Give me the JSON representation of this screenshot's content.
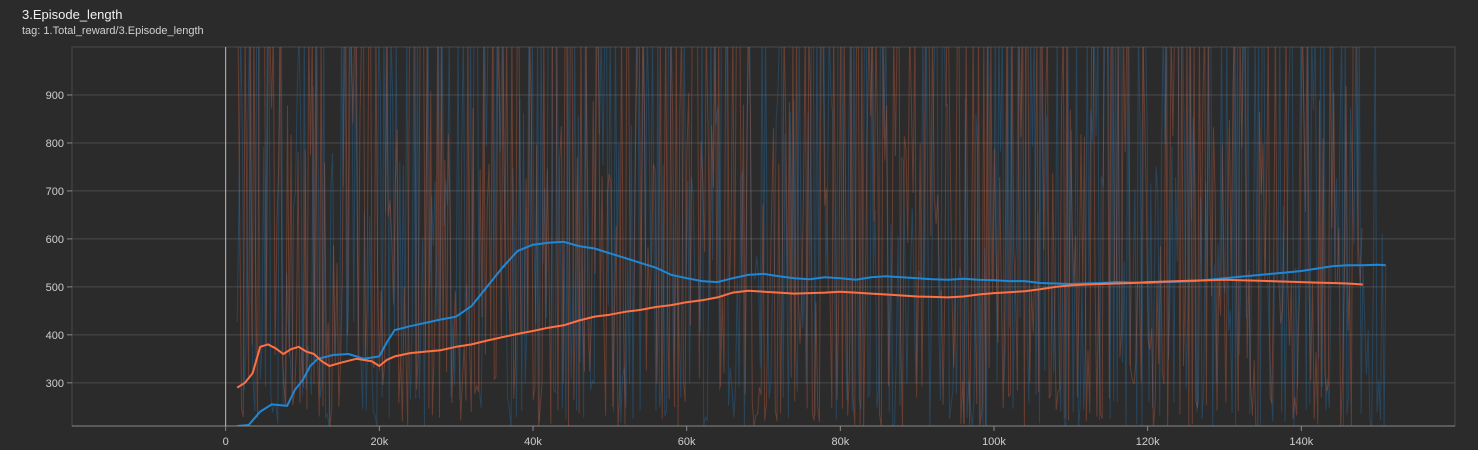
{
  "card": {
    "title": "3.Episode_length",
    "subtitle": "tag: 1.Total_reward/3.Episode_length"
  },
  "colors": {
    "background": "#2b2b2b",
    "grid": "#4a4a4a",
    "axis_text": "#cfcfcf",
    "series_blue": "#1f88d6",
    "series_orange": "#ff7043"
  },
  "chart_data": {
    "type": "line",
    "title": "3.Episode_length",
    "xlabel": "",
    "ylabel": "",
    "xlim": [
      -20000,
      160000
    ],
    "ylim": [
      210,
      1000
    ],
    "x_ticks": [
      0,
      20000,
      40000,
      60000,
      80000,
      100000,
      120000,
      140000
    ],
    "x_tick_labels": [
      "0",
      "20k",
      "40k",
      "60k",
      "80k",
      "100k",
      "120k",
      "140k"
    ],
    "y_ticks": [
      300,
      400,
      500,
      600,
      700,
      800,
      900
    ],
    "y_tick_labels": [
      "300",
      "400",
      "500",
      "600",
      "700",
      "800",
      "900"
    ],
    "grid": true,
    "legend": "none",
    "series": [
      {
        "color": "#1f88d6",
        "smoothed": true,
        "x": [
          1500,
          3000,
          4500,
          6000,
          8000,
          9000,
          10000,
          11000,
          12000,
          14000,
          16000,
          18000,
          20000,
          21000,
          22000,
          24000,
          26000,
          28000,
          30000,
          32000,
          34000,
          36000,
          38000,
          40000,
          42000,
          44000,
          46000,
          48000,
          50000,
          52000,
          54000,
          56000,
          58000,
          60000,
          62000,
          64000,
          66000,
          68000,
          70000,
          72000,
          74000,
          76000,
          78000,
          80000,
          82000,
          84000,
          86000,
          88000,
          90000,
          92000,
          94000,
          96000,
          98000,
          100000,
          102000,
          104000,
          106000,
          108000,
          110000,
          112000,
          114000,
          116000,
          118000,
          120000,
          122000,
          124000,
          126000,
          128000,
          130000,
          132000,
          134000,
          136000,
          138000,
          140000,
          142000,
          144000,
          146000,
          148000,
          150000,
          151000
        ],
        "values": [
          210,
          212,
          240,
          255,
          252,
          285,
          305,
          335,
          350,
          358,
          360,
          350,
          355,
          385,
          410,
          418,
          425,
          432,
          438,
          460,
          500,
          540,
          575,
          588,
          592,
          594,
          585,
          580,
          570,
          560,
          550,
          540,
          525,
          518,
          512,
          510,
          518,
          525,
          527,
          522,
          518,
          516,
          520,
          518,
          515,
          520,
          522,
          520,
          518,
          516,
          515,
          517,
          515,
          514,
          512,
          512,
          508,
          507,
          506,
          507,
          508,
          510,
          509,
          508,
          510,
          511,
          512,
          515,
          518,
          521,
          524,
          527,
          530,
          533,
          538,
          543,
          545,
          545,
          546,
          545
        ]
      },
      {
        "color": "#ff7043",
        "smoothed": true,
        "x": [
          1500,
          2500,
          3500,
          4500,
          5500,
          6500,
          7500,
          8500,
          9500,
          10500,
          11500,
          12500,
          13500,
          15000,
          17000,
          19000,
          20000,
          21000,
          22000,
          24000,
          26000,
          28000,
          30000,
          32000,
          34000,
          36000,
          38000,
          40000,
          42000,
          44000,
          46000,
          48000,
          50000,
          52000,
          54000,
          56000,
          58000,
          60000,
          62000,
          64000,
          66000,
          68000,
          70000,
          72000,
          74000,
          76000,
          78000,
          80000,
          82000,
          84000,
          86000,
          88000,
          90000,
          92000,
          94000,
          96000,
          98000,
          100000,
          102000,
          104000,
          106000,
          108000,
          110000,
          112000,
          114000,
          116000,
          118000,
          120000,
          122000,
          124000,
          126000,
          128000,
          130000,
          132000,
          134000,
          136000,
          138000,
          140000,
          142000,
          144000,
          146000,
          148000
        ],
        "values": [
          290,
          300,
          320,
          375,
          380,
          372,
          360,
          370,
          375,
          365,
          360,
          345,
          335,
          342,
          350,
          345,
          335,
          348,
          355,
          362,
          365,
          368,
          375,
          380,
          388,
          395,
          402,
          408,
          415,
          420,
          430,
          438,
          442,
          448,
          452,
          458,
          462,
          468,
          472,
          478,
          488,
          492,
          490,
          488,
          486,
          487,
          488,
          490,
          488,
          486,
          484,
          482,
          480,
          479,
          478,
          480,
          484,
          487,
          489,
          491,
          495,
          500,
          503,
          505,
          506,
          507,
          508,
          510,
          511,
          512,
          513,
          514,
          515,
          514,
          513,
          512,
          511,
          510,
          509,
          508,
          507,
          505
        ]
      }
    ]
  }
}
